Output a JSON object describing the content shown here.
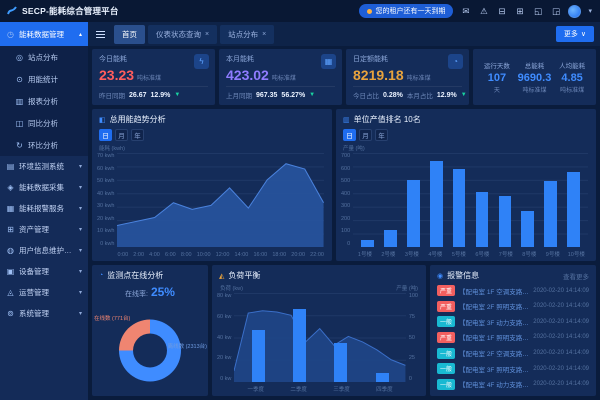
{
  "brand": {
    "title": "SECP-能耗综合管理平台"
  },
  "topbar": {
    "notice": "您的租户还有一天到期",
    "icons": [
      "message-icon",
      "alert-icon",
      "lock-icon",
      "clean-icon",
      "copy-icon",
      "fullscreen-icon"
    ]
  },
  "tabbar": {
    "tabs": [
      {
        "label": "首页",
        "active": true,
        "closable": false
      },
      {
        "label": "仪表状态查询",
        "active": false,
        "closable": true
      },
      {
        "label": "站点分布",
        "active": false,
        "closable": true
      }
    ],
    "more_label": "更多"
  },
  "sidebar": {
    "active_group": {
      "label": "能耗数据管理",
      "icon": "clock-icon"
    },
    "sub_items": [
      {
        "label": "站点分布",
        "icon": "pin-icon"
      },
      {
        "label": "用能统计",
        "icon": "stats-icon"
      },
      {
        "label": "报表分析",
        "icon": "report-icon"
      },
      {
        "label": "同比分析",
        "icon": "compare-icon"
      },
      {
        "label": "环比分析",
        "icon": "cycle-icon"
      }
    ],
    "groups": [
      {
        "label": "环境监测系统",
        "icon": "env-icon"
      },
      {
        "label": "能耗数据采集",
        "icon": "collect-icon"
      },
      {
        "label": "能耗报警服务",
        "icon": "alarm-service-icon"
      },
      {
        "label": "资产管理",
        "icon": "asset-icon"
      },
      {
        "label": "用户信息维护管理",
        "icon": "user-icon"
      },
      {
        "label": "设备管理",
        "icon": "device-icon"
      },
      {
        "label": "运营管理",
        "icon": "ops-icon"
      },
      {
        "label": "系统管理",
        "icon": "system-icon"
      }
    ]
  },
  "cards": [
    {
      "title": "今日能耗",
      "value": "23.23",
      "unit": "吨标准煤",
      "value_color": "#ff5d5d",
      "icon": "bolt-icon",
      "footer": [
        {
          "label": "昨日同期",
          "value": "26.67"
        },
        {
          "label": "",
          "value": "12.9%",
          "trend": "down"
        }
      ]
    },
    {
      "title": "本月能耗",
      "value": "423.02",
      "unit": "吨标准煤",
      "value_color": "#8f7cff",
      "icon": "calendar-icon",
      "footer": [
        {
          "label": "上月同期",
          "value": "967.35"
        },
        {
          "label": "",
          "value": "56.27%",
          "trend": "down"
        }
      ]
    },
    {
      "title": "日定额能耗",
      "value": "8219.18",
      "unit": "吨标准煤",
      "value_color": "#e8a33d",
      "icon": "gauge-icon",
      "footer": [
        {
          "label": "今日占比",
          "value": "0.28%"
        },
        {
          "label": "本月占比",
          "value": "12.9%",
          "trend": "down"
        }
      ]
    },
    {
      "type": "triple",
      "items": [
        {
          "label": "运行天数",
          "value": "107",
          "unit": "天"
        },
        {
          "label": "总能耗",
          "value": "9690.3",
          "unit": "吨标准煤"
        },
        {
          "label": "人均能耗",
          "value": "4.85",
          "unit": "吨标准煤"
        }
      ]
    }
  ],
  "chart_data": [
    {
      "type": "area",
      "title": "总用能趋势分析",
      "toggles": [
        "日",
        "月",
        "年"
      ],
      "active_toggle": "日",
      "ylabel": "能耗 (kwh)",
      "ymax": 70,
      "yticks": [
        "70 kwh",
        "60 kwh",
        "50 kwh",
        "40 kwh",
        "30 kwh",
        "20 kwh",
        "10 kwh",
        "0 kwh"
      ],
      "x": [
        "0:00",
        "2:00",
        "4:00",
        "6:00",
        "8:00",
        "10:00",
        "12:00",
        "14:00",
        "16:00",
        "18:00",
        "20:00",
        "22:00"
      ],
      "values": [
        16,
        19,
        22,
        33,
        28,
        31,
        44,
        29,
        50,
        62,
        58,
        33
      ],
      "fill": "#27549f",
      "line": "#4a82dd",
      "legend_position": "none",
      "grid": true
    },
    {
      "type": "bar",
      "title": "单位产值排名 10名",
      "toggles": [
        "日",
        "月",
        "年"
      ],
      "active_toggle": "日",
      "ylabel": "产量 (吨)",
      "ymax": 700,
      "yticks": [
        "700",
        "600",
        "500",
        "400",
        "300",
        "200",
        "100",
        "0"
      ],
      "categories": [
        "1号楼",
        "2号楼",
        "3号楼",
        "4号楼",
        "5号楼",
        "6号楼",
        "7号楼",
        "8号楼",
        "9号楼",
        "10号楼"
      ],
      "values": [
        55,
        130,
        500,
        640,
        580,
        410,
        380,
        265,
        495,
        555
      ],
      "bar_color": "#2f82f7",
      "grid": true
    },
    {
      "type": "pie",
      "title": "监测点在线分析",
      "rate_label": "在线率:",
      "rate": "25%",
      "slices": [
        {
          "name": "在线数 (771台)",
          "value": 25,
          "color": "#ef8571"
        },
        {
          "name": "离线数 (2313台)",
          "value": 75,
          "color": "#3f8cff"
        }
      ]
    },
    {
      "type": "combo",
      "title": "负荷平衡",
      "ylabel_left": "负荷 (kw)",
      "ylabel_right": "产量 (吨)",
      "yticks_left": [
        "80 kw",
        "60 kw",
        "40 kw",
        "20 kw",
        "0 kw"
      ],
      "yticks_right": [
        "100",
        "75",
        "50",
        "25",
        "0"
      ],
      "area_values": [
        10,
        62,
        64,
        63,
        60,
        36,
        48,
        33,
        41,
        36,
        29,
        20,
        15
      ],
      "area_ymax": 80,
      "categories": [
        "一季度",
        "二季度",
        "三季度",
        "四季度"
      ],
      "bar_values": [
        58,
        82,
        44,
        10
      ],
      "bar_ymax": 100,
      "fill": "#1f4687",
      "line": "#3a6fc9",
      "bar_color": "#2f82f7",
      "grid": true
    }
  ],
  "alarms": {
    "title": "报警信息",
    "more_label": "查看更多",
    "items": [
      {
        "level": "严重",
        "severity": "high",
        "text": "【配电室 1F 空调支路】通讯中断 1小时",
        "time": "2020-02-20 14:14:09"
      },
      {
        "level": "严重",
        "severity": "high",
        "text": "【配电室 2F 照明支路】通讯中断 1小时",
        "time": "2020-02-20 14:14:09"
      },
      {
        "level": "一般",
        "severity": "normal",
        "text": "【配电室 3F 动力支路】通讯中断 1小时",
        "time": "2020-02-20 14:14:09"
      },
      {
        "level": "严重",
        "severity": "high",
        "text": "【配电室 1F 照明支路】通讯中断 1小时",
        "time": "2020-02-20 14:14:09"
      },
      {
        "level": "一般",
        "severity": "normal",
        "text": "【配电室 2F 空调支路】通讯中断 1小时",
        "time": "2020-02-20 14:14:09"
      },
      {
        "level": "一般",
        "severity": "normal",
        "text": "【配电室 3F 照明支路】通讯中断 1小时",
        "time": "2020-02-20 14:14:09"
      },
      {
        "level": "一般",
        "severity": "normal",
        "text": "【配电室 4F 动力支路】通讯中断 1小时",
        "time": "2020-02-20 14:14:09"
      }
    ]
  }
}
